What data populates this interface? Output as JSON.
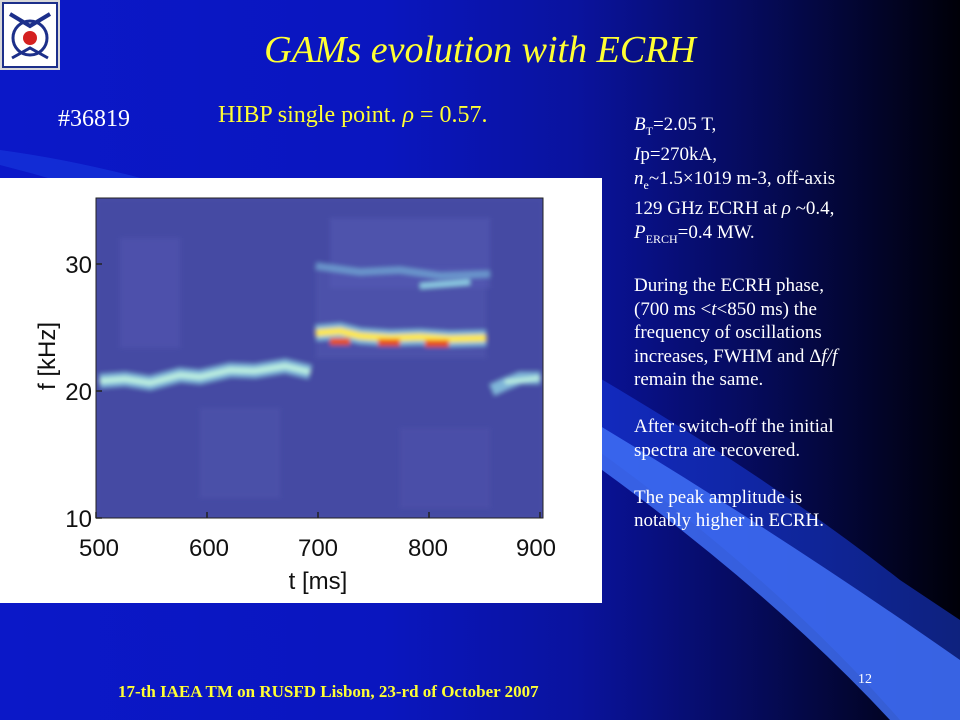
{
  "logo": {
    "icon": "institute-logo-icon"
  },
  "title": "GAMs evolution with ECRH",
  "shot_number": "#36819",
  "subtitle_prefix": "HIBP single point. ",
  "subtitle_rho": "ρ",
  "subtitle_suffix": " = 0.57.",
  "params": {
    "bt_main": "B",
    "bt_sub": "T",
    "bt_val": "=2.05 T,",
    "ip_i": "I",
    "ip_val": "p=270kA,",
    "ne_n": "n",
    "ne_sub": "e",
    "ne_val": "~1.5×1019 m-3, off-axis",
    "ecrh_pre": "129 GHz ECRH at ",
    "ecrh_rho": "ρ",
    "ecrh_post": " ~0.4,",
    "p_main": "P",
    "p_sub": "ERCH",
    "p_val": "=0.4 MW."
  },
  "para1": {
    "l1": "During the ECRH phase,",
    "l2_pre": "(700 ms <",
    "l2_t": "t",
    "l2_post": "<850 ms) the",
    "l3": "frequency of oscillations",
    "l4_pre": "increases, FWHM and ",
    "l4_delta": "Δ",
    "l4_ff": "f/f",
    "l5": "remain the same."
  },
  "para2": {
    "l1": "After switch-off the initial",
    "l2": "spectra are recovered."
  },
  "para3": {
    "l1": "The peak amplitude is",
    "l2": "notably higher in ECRH."
  },
  "spectrogram": {
    "ylabel": "f [kHz]",
    "xlabel": "t [ms]",
    "yticks": [
      "10",
      "20",
      "30"
    ],
    "xticks": [
      "500",
      "600",
      "700",
      "800",
      "900"
    ],
    "colors": {
      "background": "#4a4ea8",
      "low": "#7fb6d8",
      "mid": "#bff2e0",
      "high": "#ffe84a",
      "peak": "#e8501e"
    }
  },
  "footer": "17-th IAEA TM on RUSFD Lisbon, 23-rd of October 2007",
  "page_number": "12",
  "colors": {
    "title": "#ffff33",
    "text": "#ffffff",
    "background": "#0b18c8"
  }
}
